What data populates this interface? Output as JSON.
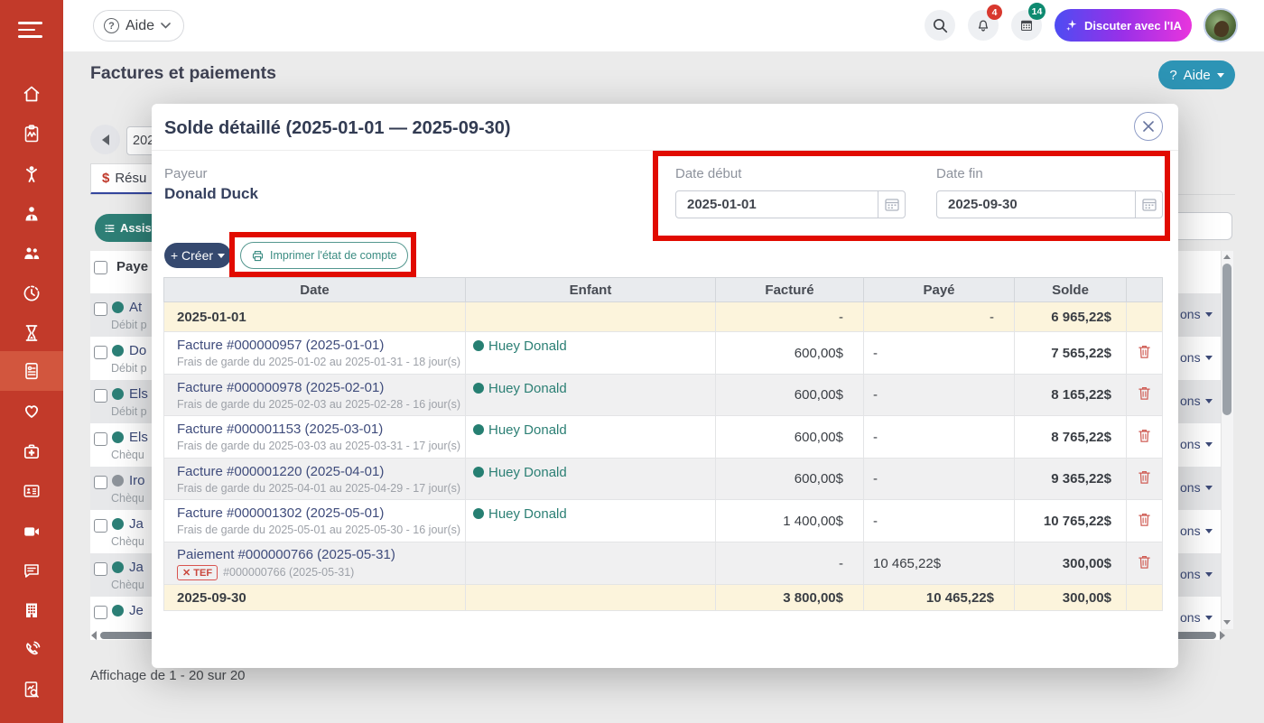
{
  "topbar": {
    "help_label": "Aide",
    "question_mark": "?",
    "notification_badge": "4",
    "calendar_badge": "14",
    "chat_ai_label": "Discuter avec l'IA"
  },
  "header": {
    "title": "Factures et paiements",
    "help_button_q": "?",
    "help_button_label": "Aide"
  },
  "background": {
    "year_partial": "202",
    "tab_dollar": "$",
    "tab_label_partial": "Résu",
    "assistant_partial": "Assist",
    "table_header_partial": "Paye",
    "actions_partial": "ons",
    "footer": "Affichage de 1 - 20 sur 20",
    "rows": [
      {
        "name": "At",
        "subtitle": "Débit p",
        "dot": "#2c8077"
      },
      {
        "name": "Do",
        "subtitle": "Débit p",
        "dot": "#2c8077"
      },
      {
        "name": "Els",
        "subtitle": "Débit p",
        "dot": "#2c8077"
      },
      {
        "name": "Els",
        "subtitle": "Chèqu",
        "dot": "#2c8077"
      },
      {
        "name": "Iro",
        "subtitle": "Chèqu",
        "dot": "#8e949b"
      },
      {
        "name": "Ja",
        "subtitle": "Chèqu",
        "dot": "#2c8077"
      },
      {
        "name": "Ja",
        "subtitle": "Chèqu",
        "dot": "#2c8077"
      },
      {
        "name": "Je",
        "subtitle": "",
        "dot": "#2c8077"
      }
    ]
  },
  "modal": {
    "title": "Solde détaillé (2025-01-01 — 2025-09-30)",
    "payer_label": "Payeur",
    "payer_name": "Donald Duck",
    "date_start_label": "Date début",
    "date_start_value": "2025-01-01",
    "date_end_label": "Date fin",
    "date_end_value": "2025-09-30",
    "create_label": "+ Créer",
    "print_label": "Imprimer l'état de compte",
    "table": {
      "headers": [
        "Date",
        "Enfant",
        "Facturé",
        "Payé",
        "Solde"
      ],
      "rows": [
        {
          "type": "summary",
          "date": "2025-01-01",
          "facture": "-",
          "paye": "-",
          "solde": "6 965,22$"
        },
        {
          "type": "invoice",
          "title": "Facture #000000957 (2025-01-01)",
          "subtitle": "Frais de garde du 2025-01-02 au 2025-01-31 - 18 jour(s)",
          "child": "Huey Donald",
          "facture": "600,00$",
          "paye": "-",
          "solde": "7 565,22$"
        },
        {
          "type": "invoice",
          "title": "Facture #000000978 (2025-02-01)",
          "subtitle": "Frais de garde du 2025-02-03 au 2025-02-28 - 16 jour(s)",
          "child": "Huey Donald",
          "facture": "600,00$",
          "paye": "-",
          "solde": "8 165,22$"
        },
        {
          "type": "invoice",
          "title": "Facture #000001153 (2025-03-01)",
          "subtitle": "Frais de garde du 2025-03-03 au 2025-03-31 - 17 jour(s)",
          "child": "Huey Donald",
          "facture": "600,00$",
          "paye": "-",
          "solde": "8 765,22$"
        },
        {
          "type": "invoice",
          "title": "Facture #000001220 (2025-04-01)",
          "subtitle": "Frais de garde du 2025-04-01 au 2025-04-29 - 17 jour(s)",
          "child": "Huey Donald",
          "facture": "600,00$",
          "paye": "-",
          "solde": "9 365,22$"
        },
        {
          "type": "invoice",
          "title": "Facture #000001302 (2025-05-01)",
          "subtitle": "Frais de garde du 2025-05-01 au 2025-05-30 - 16 jour(s)",
          "child": "Huey Donald",
          "facture": "1 400,00$",
          "paye": "-",
          "solde": "10 765,22$"
        },
        {
          "type": "payment",
          "title": "Paiement #000000766 (2025-05-31)",
          "badge": "✕ TEF",
          "subtitle": "#000000766 (2025-05-31)",
          "facture": "-",
          "paye": "10 465,22$",
          "solde": "300,00$"
        },
        {
          "type": "summary",
          "date": "2025-09-30",
          "facture": "3 800,00$",
          "paye": "10 465,22$",
          "solde": "300,00$"
        }
      ]
    }
  }
}
